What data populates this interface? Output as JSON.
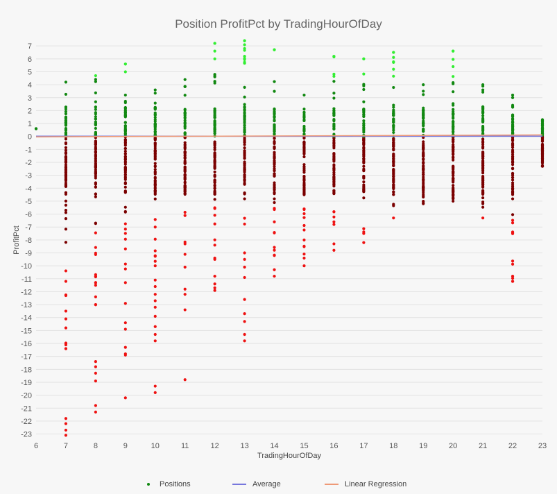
{
  "chart_data": {
    "type": "scatter",
    "title": "Position ProfitPct by TradingHourOfDay",
    "xlabel": "TradingHourOfDay",
    "ylabel": "ProfitPct",
    "xlim": [
      6,
      23
    ],
    "ylim": [
      -23.4,
      7.6
    ],
    "x_ticks": [
      6,
      7,
      8,
      9,
      10,
      11,
      12,
      13,
      14,
      15,
      16,
      17,
      18,
      19,
      20,
      21,
      22,
      23
    ],
    "y_ticks": [
      7,
      6,
      5,
      4,
      3,
      2,
      1,
      0,
      -1,
      -2,
      -3,
      -4,
      -5,
      -6,
      -7,
      -8,
      -9,
      -10,
      -11,
      -12,
      -13,
      -14,
      -15,
      -16,
      -17,
      -18,
      -19,
      -20,
      -21,
      -22,
      -23
    ],
    "grid": true,
    "legend_position": "bottom",
    "colors": {
      "gain_strong": "#33ee33",
      "gain": "#118811",
      "loss": "#7a0000",
      "loss_strong": "#ee1111",
      "average": "#7777dd",
      "regression": "#ee9977"
    },
    "series": [
      {
        "name": "Positions",
        "hours": [
          {
            "x": 6,
            "max": 0.6,
            "min": 0.6,
            "outliers": [
              0.6
            ]
          },
          {
            "x": 7,
            "max": 4.2,
            "min": -16.4,
            "outliers": [
              -21.8,
              -22.2,
              -22.7,
              -23.1,
              -11.2,
              -12.3,
              -13.5,
              -14.1,
              -14.8,
              -16,
              -16.4
            ]
          },
          {
            "x": 8,
            "max": 4.7,
            "min": -13,
            "outliers": [
              -17.4,
              -17.8,
              -18.3,
              -18.9,
              -20.8,
              -21.3,
              -11.5,
              -12.4,
              -13
            ]
          },
          {
            "x": 9,
            "max": 5.6,
            "min": -11.3,
            "outliers": [
              -12.9,
              -14.4,
              -14.9,
              -16.3,
              -16.8,
              -16.9,
              -20.2,
              5.6,
              5
            ]
          },
          {
            "x": 10,
            "max": 3.6,
            "min": -10,
            "outliers": [
              -11.1,
              -11.6,
              -12.2,
              -12.7,
              -13.2,
              -13.9,
              -14.7,
              -15.3,
              -15.8,
              -19.3,
              -19.8
            ]
          },
          {
            "x": 11,
            "max": 4.4,
            "min": -10.1,
            "outliers": [
              -11.8,
              -12.2,
              -13.4,
              -18.8
            ]
          },
          {
            "x": 12,
            "max": 7.2,
            "min": -8.4,
            "outliers": [
              -9.4,
              -9.5,
              -10.8,
              -11.4,
              -11.7,
              -11.9,
              7.2,
              6.6,
              6
            ]
          },
          {
            "x": 13,
            "max": 7.4,
            "min": -9,
            "outliers": [
              -9.5,
              -10.1,
              -10.9,
              -12.6,
              -13.7,
              -14.3,
              -15.3,
              -15.8,
              7.4,
              6.8,
              6.2
            ]
          },
          {
            "x": 14,
            "max": 6.7,
            "min": -9.2,
            "outliers": [
              -10.3,
              -10.8,
              6.7
            ]
          },
          {
            "x": 15,
            "max": 3.2,
            "min": -9.4,
            "outliers": [
              -10
            ]
          },
          {
            "x": 16,
            "max": 6.2,
            "min": -6.8,
            "outliers": [
              -8.3,
              -8.8
            ]
          },
          {
            "x": 17,
            "max": 6,
            "min": -7.5,
            "outliers": [
              -8.2,
              6
            ]
          },
          {
            "x": 18,
            "max": 6.5,
            "min": -6.3,
            "outliers": [
              6.5
            ]
          },
          {
            "x": 19,
            "max": 4,
            "min": -5.2,
            "outliers": []
          },
          {
            "x": 20,
            "max": 6.6,
            "min": -5,
            "outliers": [
              6.6
            ]
          },
          {
            "x": 21,
            "max": 4,
            "min": -6.3,
            "outliers": []
          },
          {
            "x": 22,
            "max": 3.2,
            "min": -11.2,
            "outliers": [
              -10.8,
              -11.2
            ]
          },
          {
            "x": 23,
            "max": 1.3,
            "min": -2.3,
            "outliers": [
              -2.3,
              -1.7
            ]
          }
        ]
      },
      {
        "name": "Average",
        "x": [
          6,
          23
        ],
        "y": [
          0.02,
          0.02
        ]
      },
      {
        "name": "Linear Regression",
        "x": [
          6,
          23
        ],
        "y": [
          -0.03,
          0.12
        ]
      }
    ]
  },
  "legend": {
    "positions": "Positions",
    "average": "Average",
    "regression": "Linear Regression"
  }
}
